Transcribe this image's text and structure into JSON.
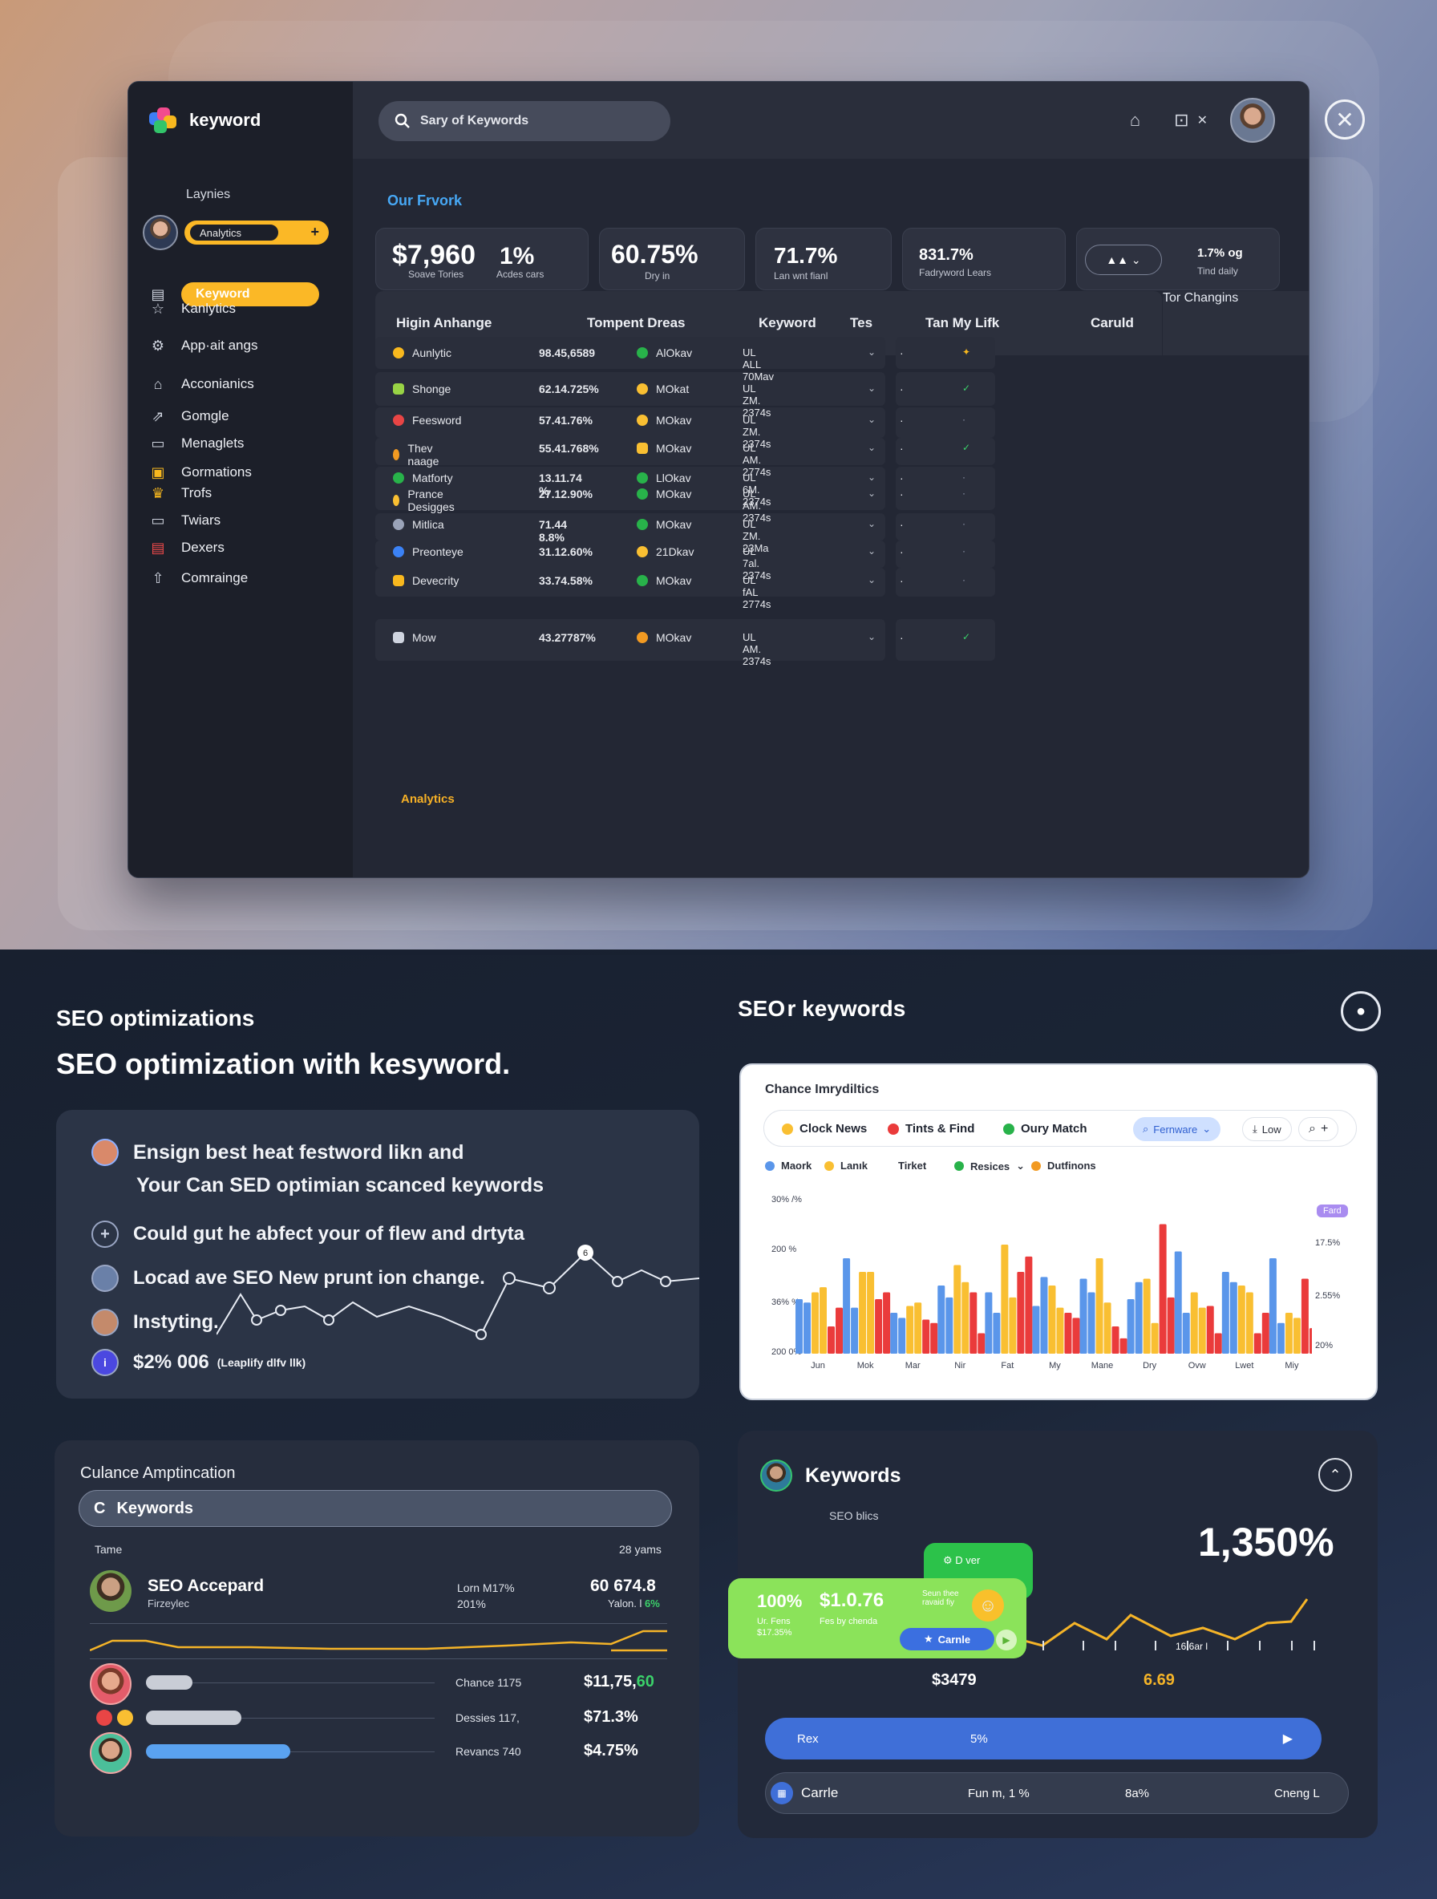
{
  "app": {
    "brand": "keyword",
    "sidebar": {
      "caption": "Laynies",
      "user_pill": "Analytics",
      "active_item": "Keyword",
      "items": [
        {
          "label": "Kanlytics",
          "icon": "star-icon"
        },
        {
          "label": "App·ait angs",
          "icon": "settings-icon"
        },
        {
          "label": "Acconianics",
          "icon": "home-icon"
        },
        {
          "label": "Gomgle",
          "icon": "share-icon"
        },
        {
          "label": "Menaglets",
          "icon": "window-icon"
        },
        {
          "label": "Gormations",
          "icon": "folder-icon"
        },
        {
          "label": "Trofs",
          "icon": "trophy-icon"
        },
        {
          "label": "Twiars",
          "icon": "tv-icon"
        },
        {
          "label": "Dexers",
          "icon": "box-icon"
        },
        {
          "label": "Comrainge",
          "icon": "upload-icon"
        }
      ]
    },
    "search_placeholder": "Sary of Keywords",
    "section_title": "Our Frvork",
    "stats": [
      {
        "value": "$7,960",
        "label": "Soave Tories"
      },
      {
        "value": "1%",
        "label": "Acdes cars"
      },
      {
        "value": "60.75%",
        "label": "Dry in"
      },
      {
        "value": "71.7%",
        "label": "Lan wnt fianl"
      },
      {
        "value": "831.7%",
        "label": "Fadryword Lears"
      },
      {
        "value": "1.7% og",
        "label": "Tind daily"
      }
    ],
    "table": {
      "headers": [
        "Higin Anhange",
        "Tompent Dreas",
        "Keyword",
        "Tes",
        "Tan My Lifk",
        "Caruld"
      ],
      "side_header": "Tor Changins",
      "rows": [
        {
          "name": "Aunlytic",
          "value": "98.45,6589",
          "kw": "AlOkav",
          "date": "UL ALL 70Mav"
        },
        {
          "name": "Shonge",
          "value": "62.14.725%",
          "kw": "MOkat",
          "date": "UL ZM. 2374s"
        },
        {
          "name": "Feesword",
          "value": "57.41.76%",
          "kw": "MOkav",
          "date": "UL ZM. 2374s"
        },
        {
          "name": "Thev naage",
          "value": "55.41.768%",
          "kw": "MOkav",
          "date": "UL AM. 2774s"
        },
        {
          "name": "Matforty",
          "value": "13.11.74 %",
          "kw": "LlOkav",
          "date": "UL 6M. 2374s"
        },
        {
          "name": "Prance Desigges",
          "value": "27.12.90%",
          "kw": "MOkav",
          "date": "UL AM. 2374s"
        },
        {
          "name": "Mitlica",
          "value": "71.44 8.8%",
          "kw": "MOkav",
          "date": "UL ZM. 23Ma"
        },
        {
          "name": "Preonteye",
          "value": "31.12.60%",
          "kw": "21Dkav",
          "date": "UL 7al. 2374s"
        },
        {
          "name": "Devecrity",
          "value": "33.74.58%",
          "kw": "MOkav",
          "date": "UL fAL 2774s"
        },
        {
          "name": "Mow",
          "value": "43.27787%",
          "kw": "MOkav",
          "date": "UL AM. 2374s"
        }
      ],
      "group_label": "Analytics"
    }
  },
  "seo": {
    "subtitle": "SEO optimizations",
    "title": "SEO optimization with kesyword.",
    "features": [
      "Ensign best heat festword likn and",
      "Your Can SED optimian scanced keywords",
      "Could gut he abfect your of flew and drtyta",
      "Locad ave SEO New prunt ion change.",
      "Instyting."
    ],
    "price": "$2% 006",
    "price_note": "(Leaplify dlfv llk)",
    "spark_badge": "6"
  },
  "amptincation": {
    "title": "Culance Amptincation",
    "search_label": "Keywords",
    "col_left": "Tame",
    "col_right": "28 yams",
    "top": {
      "name": "SEO Accepard",
      "sub": "Firzeylec",
      "meta1": "Lorn M17%",
      "meta2": "201%",
      "value": "60 674.8",
      "value_sub": "Yalon. l",
      "value_green": "6%"
    },
    "rows": [
      {
        "label": "Chance 1175",
        "value": "$11,75,",
        "value_green": "60",
        "fill": 0.16,
        "color": "#c9cdd6"
      },
      {
        "label": "Dessies 117,",
        "value": "$71.3%",
        "fill": 0.33,
        "color": "#c9cdd6"
      },
      {
        "label": "Revancs 740",
        "value": "$4.75%",
        "fill": 0.5,
        "color": "#5aa2f0"
      }
    ]
  },
  "keywords_chart": {
    "heading": "SEO r keywords",
    "card_title": "Chance Imrydiltics",
    "chips": [
      {
        "label": "Clock News",
        "color": "#f9bf32"
      },
      {
        "label": "Tints & Find",
        "color": "#ea3b3b"
      },
      {
        "label": "Oury Match",
        "color": "#28b24a"
      }
    ],
    "buttons": [
      "Fernware",
      "Low"
    ],
    "legend": [
      {
        "label": "Maork",
        "color": "#5a96ea"
      },
      {
        "label": "Lanık",
        "color": "#f9bf32"
      },
      {
        "label": "Tirket",
        "color": ""
      },
      {
        "label": "Resices",
        "color": "#28b24a"
      },
      {
        "label": "Dutfinons",
        "color": "#f29a22"
      }
    ],
    "badge": "Fard",
    "y_left": [
      "30% /%",
      "200 %",
      "36% %",
      "200 0%"
    ],
    "y_right": [
      "17.5%",
      "2.55%",
      "20%"
    ]
  },
  "chart_data": {
    "type": "bar",
    "categories": [
      "Jun",
      "Mok",
      "Mar",
      "Nir",
      "Fat",
      "My",
      "Mane",
      "Dry",
      "Ovw",
      "Lwet",
      "Miy"
    ],
    "series": [
      {
        "color": "#5a96ea",
        "values": [
          40,
          70,
          30,
          50,
          45,
          35,
          55,
          40,
          75,
          60,
          70
        ]
      },
      {
        "color": "#f9bf32",
        "values": [
          30,
          45,
          60,
          35,
          65,
          80,
          50,
          70,
          55,
          45,
          50
        ]
      },
      {
        "color": "#ea3b3b",
        "values": [
          15,
          55,
          20,
          40,
          25,
          45,
          60,
          30,
          20,
          95,
          35
        ]
      }
    ]
  },
  "kw_panel": {
    "title": "Keywords",
    "sub": "SEO blics",
    "big_value": "1,350%",
    "green_badge": "D ver",
    "card_pct": "100%",
    "card_sub": "Ur. Fens",
    "card_sub2": "$17.35%",
    "card_price": "$1.0.76",
    "card_note": "Fes by chenda",
    "card_side": "Seun thee ravaid fiy",
    "card_btn": "Carnle",
    "axis_label": "16.6ar l",
    "v1": "$3479",
    "v2": "6.69",
    "bar1_label": "Rex",
    "bar1_mid": "5%",
    "bar2_label": "Carrle",
    "bar2_a": "Fun m, 1 %",
    "bar2_b": "8a%",
    "bar2_c": "Cneng L"
  }
}
